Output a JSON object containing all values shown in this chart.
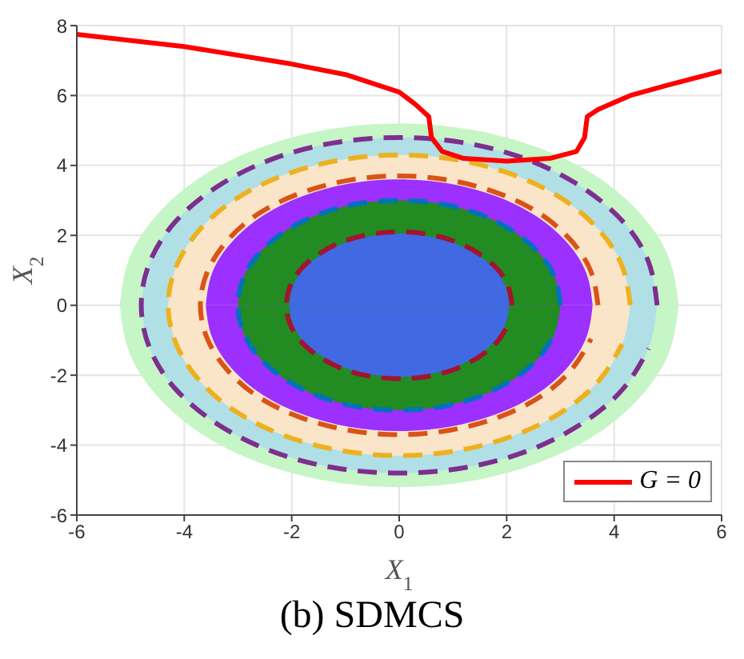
{
  "chart_data": {
    "type": "line",
    "title": "(b) SDMCS",
    "xlabel": "X$_{1}$",
    "ylabel": "X$_{2}$",
    "xlim": [
      -6,
      6
    ],
    "ylim": [
      -6,
      8
    ],
    "xticks": [
      -6,
      -4,
      -2,
      0,
      2,
      4,
      6
    ],
    "yticks": [
      -6,
      -4,
      -2,
      0,
      2,
      4,
      6,
      8
    ],
    "grid": true,
    "legend": "bottom right",
    "series": [
      {
        "type": "area",
        "color": "#c6f5c6",
        "x": [
          -5.2,
          -5.02,
          -4.5,
          -3.68,
          -2.6,
          -1.35,
          0,
          1.35,
          2.6,
          3.68,
          4.5,
          5.02,
          5.2
        ],
        "values": [
          0,
          1.35,
          2.6,
          3.68,
          4.5,
          5.02,
          5.2,
          5.02,
          4.5,
          3.68,
          2.6,
          1.35,
          0
        ]
      },
      {
        "type": "area",
        "color": "#c6f5c6",
        "x": [
          -5.2,
          -5.02,
          -4.5,
          -3.68,
          -2.6,
          -1.35,
          0,
          1.35,
          2.6,
          3.68,
          4.5,
          5.02,
          5.2
        ],
        "values": [
          0,
          -1.35,
          -2.6,
          -3.68,
          -4.5,
          -5.02,
          -5.2,
          -5.02,
          -4.5,
          -3.68,
          -2.6,
          -1.35,
          0
        ]
      },
      {
        "type": "area",
        "color": "#b0e0e6",
        "x": [
          -4.8,
          -4.64,
          -4.16,
          -3.39,
          -2.4,
          -1.24,
          0,
          1.24,
          2.4,
          3.39,
          4.16,
          4.64,
          4.8
        ],
        "values": [
          0,
          1.24,
          2.4,
          3.39,
          4.16,
          4.64,
          4.8,
          4.64,
          4.16,
          3.39,
          2.4,
          1.24,
          0
        ]
      },
      {
        "type": "area",
        "color": "#b0e0e6",
        "x": [
          -4.8,
          -4.64,
          -4.16,
          -3.39,
          -2.4,
          -1.24,
          0,
          1.24,
          2.4,
          3.39,
          4.16,
          4.64,
          4.8
        ],
        "values": [
          0,
          -1.24,
          -2.4,
          -3.39,
          -4.16,
          -4.64,
          -4.8,
          -4.64,
          -4.16,
          -3.39,
          -2.4,
          -1.24,
          0
        ]
      },
      {
        "type": "area",
        "color": "#fbe5c8",
        "x": [
          -4.3,
          -4.15,
          -3.72,
          -3.04,
          -2.15,
          -1.11,
          0,
          1.11,
          2.15,
          3.04,
          3.72,
          4.15,
          4.3
        ],
        "values": [
          0,
          1.11,
          2.15,
          3.04,
          3.72,
          4.15,
          4.3,
          4.15,
          3.72,
          3.04,
          2.15,
          1.11,
          0
        ]
      },
      {
        "type": "area",
        "color": "#fbe5c8",
        "x": [
          -4.3,
          -4.15,
          -3.72,
          -3.04,
          -2.15,
          -1.11,
          0,
          1.11,
          2.15,
          3.04,
          3.72,
          4.15,
          4.3
        ],
        "values": [
          0,
          -1.11,
          -2.15,
          -3.04,
          -3.72,
          -4.15,
          -4.3,
          -4.15,
          -3.72,
          -3.04,
          -2.15,
          -1.11,
          0
        ]
      },
      {
        "type": "area",
        "color": "#9b30ff",
        "x": [
          -3.6,
          -3.48,
          -3.12,
          -2.55,
          -1.8,
          -0.93,
          0,
          0.93,
          1.8,
          2.55,
          3.12,
          3.48,
          3.6
        ],
        "values": [
          0,
          0.93,
          1.8,
          2.55,
          3.12,
          3.48,
          3.6,
          3.48,
          3.12,
          2.55,
          1.8,
          0.93,
          0
        ]
      },
      {
        "type": "area",
        "color": "#9b30ff",
        "x": [
          -3.6,
          -3.48,
          -3.12,
          -2.55,
          -1.8,
          -0.93,
          0,
          0.93,
          1.8,
          2.55,
          3.12,
          3.48,
          3.6
        ],
        "values": [
          0,
          -0.93,
          -1.8,
          -2.55,
          -3.12,
          -3.48,
          -3.6,
          -3.48,
          -3.12,
          -2.55,
          -1.8,
          -0.93,
          0
        ]
      },
      {
        "type": "area",
        "color": "#228b22",
        "x": [
          -3,
          -2.9,
          -2.6,
          -2.12,
          -1.5,
          -0.78,
          0,
          0.78,
          1.5,
          2.12,
          2.6,
          2.9,
          3
        ],
        "values": [
          0,
          0.78,
          1.5,
          2.12,
          2.6,
          2.9,
          3,
          2.9,
          2.6,
          2.12,
          1.5,
          0.78,
          0
        ]
      },
      {
        "type": "area",
        "color": "#228b22",
        "x": [
          -3,
          -2.9,
          -2.6,
          -2.12,
          -1.5,
          -0.78,
          0,
          0.78,
          1.5,
          2.12,
          2.6,
          2.9,
          3
        ],
        "values": [
          0,
          -0.78,
          -1.5,
          -2.12,
          -2.6,
          -2.9,
          -3,
          -2.9,
          -2.6,
          -2.12,
          -1.5,
          -0.78,
          0
        ]
      },
      {
        "type": "area",
        "color": "#4169e1",
        "x": [
          -2.05,
          -1.98,
          -1.78,
          -1.45,
          -1.03,
          -0.53,
          0,
          0.53,
          1.03,
          1.45,
          1.78,
          1.98,
          2.05
        ],
        "values": [
          0,
          0.53,
          1.03,
          1.45,
          1.78,
          1.98,
          2.05,
          1.98,
          1.78,
          1.45,
          1.03,
          0.53,
          0
        ]
      },
      {
        "type": "area",
        "color": "#4169e1",
        "x": [
          -2.05,
          -1.98,
          -1.78,
          -1.45,
          -1.03,
          -0.53,
          0,
          0.53,
          1.03,
          1.45,
          1.78,
          1.98,
          2.05
        ],
        "values": [
          0,
          -0.53,
          -1.03,
          -1.45,
          -1.78,
          -1.98,
          -2.05,
          -1.98,
          -1.78,
          -1.45,
          -1.03,
          -0.53,
          0
        ]
      },
      {
        "line_style": "dashed",
        "color": "#7e2f8e",
        "x": [
          4.8,
          4.64,
          4.16,
          3.39,
          2.4,
          1.24,
          0,
          -1.24,
          -2.4,
          -3.39,
          -4.16,
          -4.64,
          -4.8,
          -4.64,
          -4.16,
          -3.39,
          -2.4,
          -1.24,
          0,
          1.24,
          2.4,
          3.39,
          4.16,
          4.64
        ],
        "values": [
          0,
          1.24,
          2.4,
          3.39,
          4.16,
          4.64,
          4.8,
          4.64,
          4.16,
          3.39,
          2.4,
          1.24,
          0,
          -1.24,
          -2.4,
          -3.39,
          -4.16,
          -4.64,
          -4.8,
          -4.64,
          -4.16,
          -3.39,
          -2.4,
          -1.24
        ]
      },
      {
        "line_style": "dashed",
        "color": "#edb120",
        "x": [
          4.3,
          4.15,
          3.72,
          3.04,
          2.15,
          1.11,
          0,
          -1.11,
          -2.15,
          -3.04,
          -3.72,
          -4.15,
          -4.3,
          -4.15,
          -3.72,
          -3.04,
          -2.15,
          -1.11,
          0,
          1.11,
          2.15,
          3.04,
          3.72,
          4.15
        ],
        "values": [
          0,
          1.11,
          2.15,
          3.04,
          3.72,
          4.15,
          4.3,
          4.15,
          3.72,
          3.04,
          2.15,
          1.11,
          0,
          -1.11,
          -2.15,
          -3.04,
          -3.72,
          -4.15,
          -4.3,
          -4.15,
          -3.72,
          -3.04,
          -2.15,
          -1.11
        ]
      },
      {
        "line_style": "dashed",
        "color": "#d95319",
        "x": [
          3.7,
          3.57,
          3.2,
          2.62,
          1.85,
          0.96,
          0,
          -0.96,
          -1.85,
          -2.62,
          -3.2,
          -3.57,
          -3.7,
          -3.57,
          -3.2,
          -2.62,
          -1.85,
          -0.96,
          0,
          0.96,
          1.85,
          2.62,
          3.2,
          3.57
        ],
        "values": [
          0,
          0.96,
          1.85,
          2.62,
          3.2,
          3.57,
          3.7,
          3.57,
          3.2,
          2.62,
          1.85,
          0.96,
          0,
          -0.96,
          -1.85,
          -2.62,
          -3.2,
          -3.57,
          -3.7,
          -3.57,
          -3.2,
          -2.62,
          -1.85,
          -0.96
        ]
      },
      {
        "line_style": "dashed",
        "color": "#0072bd",
        "x": [
          3,
          2.9,
          2.6,
          2.12,
          1.5,
          0.78,
          0,
          -0.78,
          -1.5,
          -2.12,
          -2.6,
          -2.9,
          -3,
          -2.9,
          -2.6,
          -2.12,
          -1.5,
          -0.78,
          0,
          0.78,
          1.5,
          2.12,
          2.6,
          2.9
        ],
        "values": [
          0,
          0.78,
          1.5,
          2.12,
          2.6,
          2.9,
          3,
          2.9,
          2.6,
          2.12,
          1.5,
          0.78,
          0,
          -0.78,
          -1.5,
          -2.12,
          -2.6,
          -2.9,
          -3,
          -2.9,
          -2.6,
          -2.12,
          -1.5,
          -0.78
        ]
      },
      {
        "line_style": "dashed",
        "color": "#a2142f",
        "x": [
          2.1,
          2.03,
          1.82,
          1.48,
          1.05,
          0.54,
          0,
          -0.54,
          -1.05,
          -1.48,
          -1.82,
          -2.03,
          -2.1,
          -2.03,
          -1.82,
          -1.48,
          -1.05,
          -0.54,
          0,
          0.54,
          1.05,
          1.48,
          1.82,
          2.03
        ],
        "values": [
          0,
          0.54,
          1.05,
          1.48,
          1.82,
          2.03,
          2.1,
          2.03,
          1.82,
          1.48,
          1.05,
          0.54,
          0,
          -0.54,
          -1.05,
          -1.48,
          -1.82,
          -2.03,
          -2.1,
          -2.03,
          -1.82,
          -1.48,
          -1.05,
          -0.54
        ]
      },
      {
        "name": "G = 0",
        "line_style": "solid",
        "color": "#ff0000",
        "x": [
          -6,
          -4,
          -2,
          -1,
          0,
          0.3,
          0.55,
          0.6,
          0.8,
          1.2,
          2,
          2.8,
          3.3,
          3.45,
          3.5,
          3.7,
          4.3,
          5,
          6
        ],
        "values": [
          7.75,
          7.4,
          6.9,
          6.6,
          6.1,
          5.75,
          5.4,
          4.8,
          4.4,
          4.2,
          4.12,
          4.2,
          4.4,
          4.8,
          5.4,
          5.6,
          6,
          6.3,
          6.7
        ]
      }
    ]
  }
}
